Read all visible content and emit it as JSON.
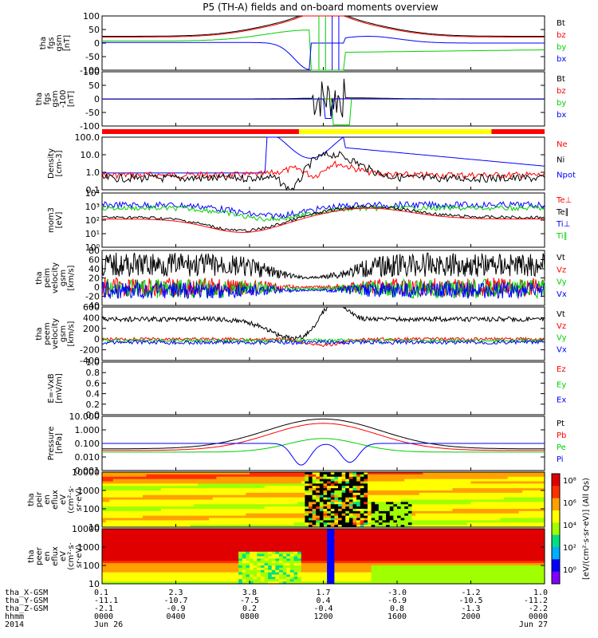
{
  "title": "P5 (TH-A) fields and on-board moments overview",
  "colors": {
    "black": "#000000",
    "red": "#ff0000",
    "green": "#00d000",
    "blue": "#0000ff",
    "yellow": "#ffff00"
  },
  "chart_data": [
    {
      "id": "fgs",
      "type": "line",
      "ylabel": [
        "tha",
        "fgs",
        "gsm",
        "[nT]"
      ],
      "ylim": [
        -100,
        100
      ],
      "yticks": [
        "100",
        "50",
        "0",
        "-50",
        "-100"
      ],
      "legend": [
        {
          "name": "Bt",
          "color": "black"
        },
        {
          "name": "bz",
          "color": "red"
        },
        {
          "name": "by",
          "color": "green"
        },
        {
          "name": "bx",
          "color": "blue"
        }
      ]
    },
    {
      "id": "fgs_lo",
      "type": "line",
      "ylabel": [
        "tha",
        "fgs",
        "gsm",
        "-100",
        "[nT]"
      ],
      "ylim": [
        -125,
        125
      ],
      "yticks": [
        "100",
        "50",
        "0",
        "-50",
        "-100"
      ],
      "legend": [
        {
          "name": "Bt",
          "color": "black"
        },
        {
          "name": "bz",
          "color": "red"
        },
        {
          "name": "by",
          "color": "green"
        },
        {
          "name": "bx",
          "color": "blue"
        }
      ]
    },
    {
      "id": "density",
      "type": "line",
      "yscale": "log",
      "ylabel": [
        "Density",
        "[cm-3]"
      ],
      "yticks": [
        "100.0",
        "10.0",
        "1.0",
        "0.1"
      ],
      "legend": [
        {
          "name": "Ne",
          "color": "red"
        },
        {
          "name": "Ni",
          "color": "black"
        },
        {
          "name": "Npot",
          "color": "blue"
        }
      ]
    },
    {
      "id": "temp",
      "type": "line",
      "yscale": "log",
      "ylabel": [
        "mom3",
        "[eV]"
      ],
      "yticks": [
        "10⁴",
        "10³",
        "10²",
        "10¹",
        "10⁰"
      ],
      "legend": [
        {
          "name": "Te⊥",
          "color": "red"
        },
        {
          "name": "Te∥",
          "color": "black"
        },
        {
          "name": "Ti⊥",
          "color": "blue"
        },
        {
          "name": "Ti∥",
          "color": "green"
        }
      ]
    },
    {
      "id": "vi",
      "type": "line",
      "ylabel": [
        "tha",
        "peim",
        "velocity",
        "gsm",
        "[km/s]"
      ],
      "ylim": [
        -40,
        80
      ],
      "yticks": [
        "80",
        "60",
        "40",
        "20",
        "0",
        "-20",
        "-40"
      ],
      "legend": [
        {
          "name": "Vt",
          "color": "black"
        },
        {
          "name": "Vz",
          "color": "red"
        },
        {
          "name": "Vy",
          "color": "green"
        },
        {
          "name": "Vx",
          "color": "blue"
        }
      ]
    },
    {
      "id": "ve",
      "type": "line",
      "ylabel": [
        "tha",
        "peem",
        "velocity",
        "gsm",
        "[km/s]"
      ],
      "ylim": [
        -400,
        600
      ],
      "yticks": [
        "600",
        "400",
        "200",
        "0",
        "-200",
        "-400"
      ],
      "legend": [
        {
          "name": "Vt",
          "color": "black"
        },
        {
          "name": "Vz",
          "color": "red"
        },
        {
          "name": "Vy",
          "color": "green"
        },
        {
          "name": "Vx",
          "color": "blue"
        }
      ]
    },
    {
      "id": "efield",
      "type": "line",
      "ylabel": [
        "E=-VxB",
        "[mV/m]"
      ],
      "ylim": [
        0,
        1
      ],
      "yticks": [
        "1.0",
        "0.8",
        "0.6",
        "0.4",
        "0.2",
        "0.0"
      ],
      "legend": [
        {
          "name": "Ez",
          "color": "red"
        },
        {
          "name": "Ey",
          "color": "green"
        },
        {
          "name": "Ex",
          "color": "blue"
        }
      ]
    },
    {
      "id": "pressure",
      "type": "line",
      "yscale": "log",
      "ylabel": [
        "Pressure",
        "[nPa]"
      ],
      "yticks": [
        "10.000",
        "1.000",
        "0.100",
        "0.010",
        "0.001"
      ],
      "legend": [
        {
          "name": "Pt",
          "color": "black"
        },
        {
          "name": "Pb",
          "color": "red"
        },
        {
          "name": "Pe",
          "color": "green"
        },
        {
          "name": "Pi",
          "color": "blue"
        }
      ]
    },
    {
      "id": "ion_spec",
      "type": "heatmap",
      "yscale": "log",
      "ylabel": [
        "tha",
        "peir",
        "en",
        "eflux",
        "eV",
        "(cm²·s·",
        "sr·eV)"
      ],
      "yticks": [
        "10000",
        "1000",
        "100",
        "10"
      ]
    },
    {
      "id": "ele_spec",
      "type": "heatmap",
      "yscale": "log",
      "ylabel": [
        "tha",
        "peer",
        "en",
        "eflux",
        "eV",
        "(cm²·s·",
        "sr·eV)"
      ],
      "yticks": [
        "10000",
        "1000",
        "100",
        "10"
      ]
    }
  ],
  "colorbar": {
    "label": "[eV/(cm²·s·sr·eV)] (All Qs)",
    "ticks": [
      "10⁸",
      "10⁶",
      "10⁴",
      "10²",
      "10⁰"
    ]
  },
  "mode_bar": {
    "segments": [
      {
        "from": 0.0,
        "to": 0.445,
        "color": "red"
      },
      {
        "from": 0.445,
        "to": 0.88,
        "color": "yellow"
      },
      {
        "from": 0.88,
        "to": 1.0,
        "color": "red"
      }
    ]
  },
  "x_axis": {
    "rows": [
      {
        "label": "tha_X-GSM",
        "values": [
          "0.1",
          "2.3",
          "3.8",
          "1.7",
          "-3.0",
          "-1.2",
          "1.0"
        ]
      },
      {
        "label": "tha_Y-GSM",
        "values": [
          "-11.1",
          "-10.7",
          "-7.5",
          "0.4",
          "-6.9",
          "-10.5",
          "-11.2"
        ]
      },
      {
        "label": "tha_Z-GSM",
        "values": [
          "-2.1",
          "-0.9",
          "0.2",
          "-0.4",
          "0.8",
          "-1.3",
          "-2.2"
        ]
      },
      {
        "label": "hhmm",
        "values": [
          "0000",
          "0400",
          "0800",
          "1200",
          "1600",
          "2000",
          "0000"
        ]
      },
      {
        "label": "2014",
        "values": [
          "Jun 26",
          "",
          "",
          "",
          "",
          "",
          "Jun 27"
        ]
      }
    ]
  }
}
